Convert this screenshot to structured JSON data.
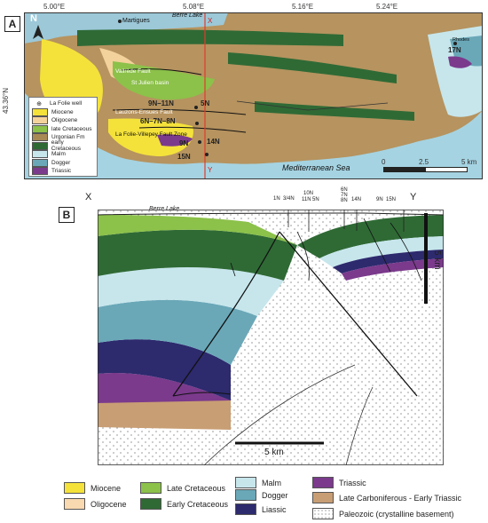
{
  "panel_a": {
    "label": "A",
    "lon_ticks": [
      "5.00°E",
      "5.08°E",
      "5.16°E",
      "5.24°E"
    ],
    "lat_tick": "43.36°N",
    "north": "N",
    "places": {
      "martigues": "Martigues",
      "berre_lake": "Berre Lake",
      "section_x": "X",
      "section_y": "Y",
      "vallrede_fault": "Vallrède Fault",
      "st_julien_basin": "St Julien basin",
      "lauzons_fault": "Lauzons-Ensues Fault",
      "la_folie_fault": "La Folie-Villepey Fault Zone",
      "sea": "Mediterranean Sea",
      "rhodes": "Rhodes"
    },
    "wells": {
      "w9n11n": "9N–11N",
      "w5n": "5N",
      "w6n": "6N–7N–8N",
      "w9n": "9N",
      "w14n": "14N",
      "w15n": "15N",
      "w17n": "17N"
    },
    "legend": {
      "well": "La Folie well",
      "items": [
        {
          "label": "Miocene",
          "color": "#f4e23b"
        },
        {
          "label": "Oligocene",
          "color": "#f3d29b"
        },
        {
          "label": "late Cretaceous",
          "color": "#8cc14a"
        },
        {
          "label": "Urgonian Fm",
          "color": "#a88a55"
        },
        {
          "label": "early Cretaceous",
          "color": "#2f6a35"
        },
        {
          "label": "Malm",
          "color": "#c6e6ec"
        },
        {
          "label": "Dogger",
          "color": "#6aa8b8"
        },
        {
          "label": "Triassic",
          "color": "#7b3a8c"
        }
      ]
    },
    "scale": {
      "v0": "0",
      "v1": "2.5",
      "v2": "5 km"
    }
  },
  "panel_b": {
    "label": "B",
    "x_end": "X",
    "y_end": "Y",
    "berre_lake": "Berre Lake",
    "wells_top": [
      "1N",
      "3/4N",
      "10N",
      "11N",
      "5N",
      "6N",
      "7N",
      "8N",
      "14N",
      "9N",
      "15N"
    ],
    "vscale": "5 km",
    "hscale": "5 km"
  },
  "bottom_legend": [
    {
      "label": "Miocene",
      "color": "#f4e23b"
    },
    {
      "label": "Oligocene",
      "color": "#f9d9b0"
    },
    {
      "label": "Late Cretaceous",
      "color": "#8cc14a"
    },
    {
      "label": "Early Cretaceous",
      "color": "#2f6a35"
    },
    {
      "label": "Malm",
      "color": "#c6e6ec"
    },
    {
      "label": "Dogger",
      "color": "#6aa8b8"
    },
    {
      "label": "Liassic",
      "color": "#2d2a6e"
    },
    {
      "label": "Triassic",
      "color": "#7b3a8c"
    },
    {
      "label": "Late Carboniferous - Early Triassic",
      "color": "#c89e74"
    },
    {
      "label": "Paleozoic (crystalline basement)",
      "color": "#ffffff"
    }
  ]
}
